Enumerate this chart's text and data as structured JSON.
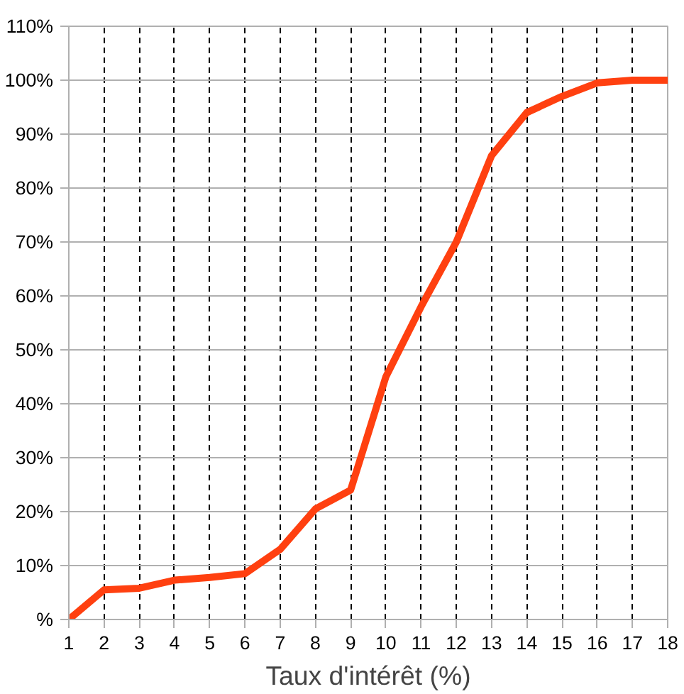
{
  "chart_data": {
    "type": "line",
    "xlabel": "Taux d'intérêt (%)",
    "x": [
      1,
      2,
      3,
      4,
      5,
      6,
      7,
      8,
      9,
      10,
      11,
      12,
      13,
      14,
      15,
      16,
      17,
      18
    ],
    "series": [
      {
        "color": "#ff4010",
        "values": [
          0,
          5.5,
          5.8,
          7.3,
          7.8,
          8.5,
          13,
          20.5,
          24,
          45,
          58,
          70,
          86,
          94,
          97,
          99.5,
          100,
          100
        ]
      }
    ],
    "xlim": [
      1,
      18
    ],
    "xticks": [
      1,
      2,
      3,
      4,
      5,
      6,
      7,
      8,
      9,
      10,
      11,
      12,
      13,
      14,
      15,
      16,
      17,
      18
    ],
    "ylim": [
      0,
      110
    ],
    "yticks": [
      {
        "value": 0,
        "label": "%"
      },
      {
        "value": 10,
        "label": "10%"
      },
      {
        "value": 20,
        "label": "20%"
      },
      {
        "value": 30,
        "label": "30%"
      },
      {
        "value": 40,
        "label": "40%"
      },
      {
        "value": 50,
        "label": "50%"
      },
      {
        "value": 60,
        "label": "60%"
      },
      {
        "value": 70,
        "label": "70%"
      },
      {
        "value": 80,
        "label": "80%"
      },
      {
        "value": 90,
        "label": "90%"
      },
      {
        "value": 100,
        "label": "100%"
      },
      {
        "value": 110,
        "label": "110%"
      }
    ],
    "grid": true,
    "marker": "none",
    "line_style": "solid"
  }
}
